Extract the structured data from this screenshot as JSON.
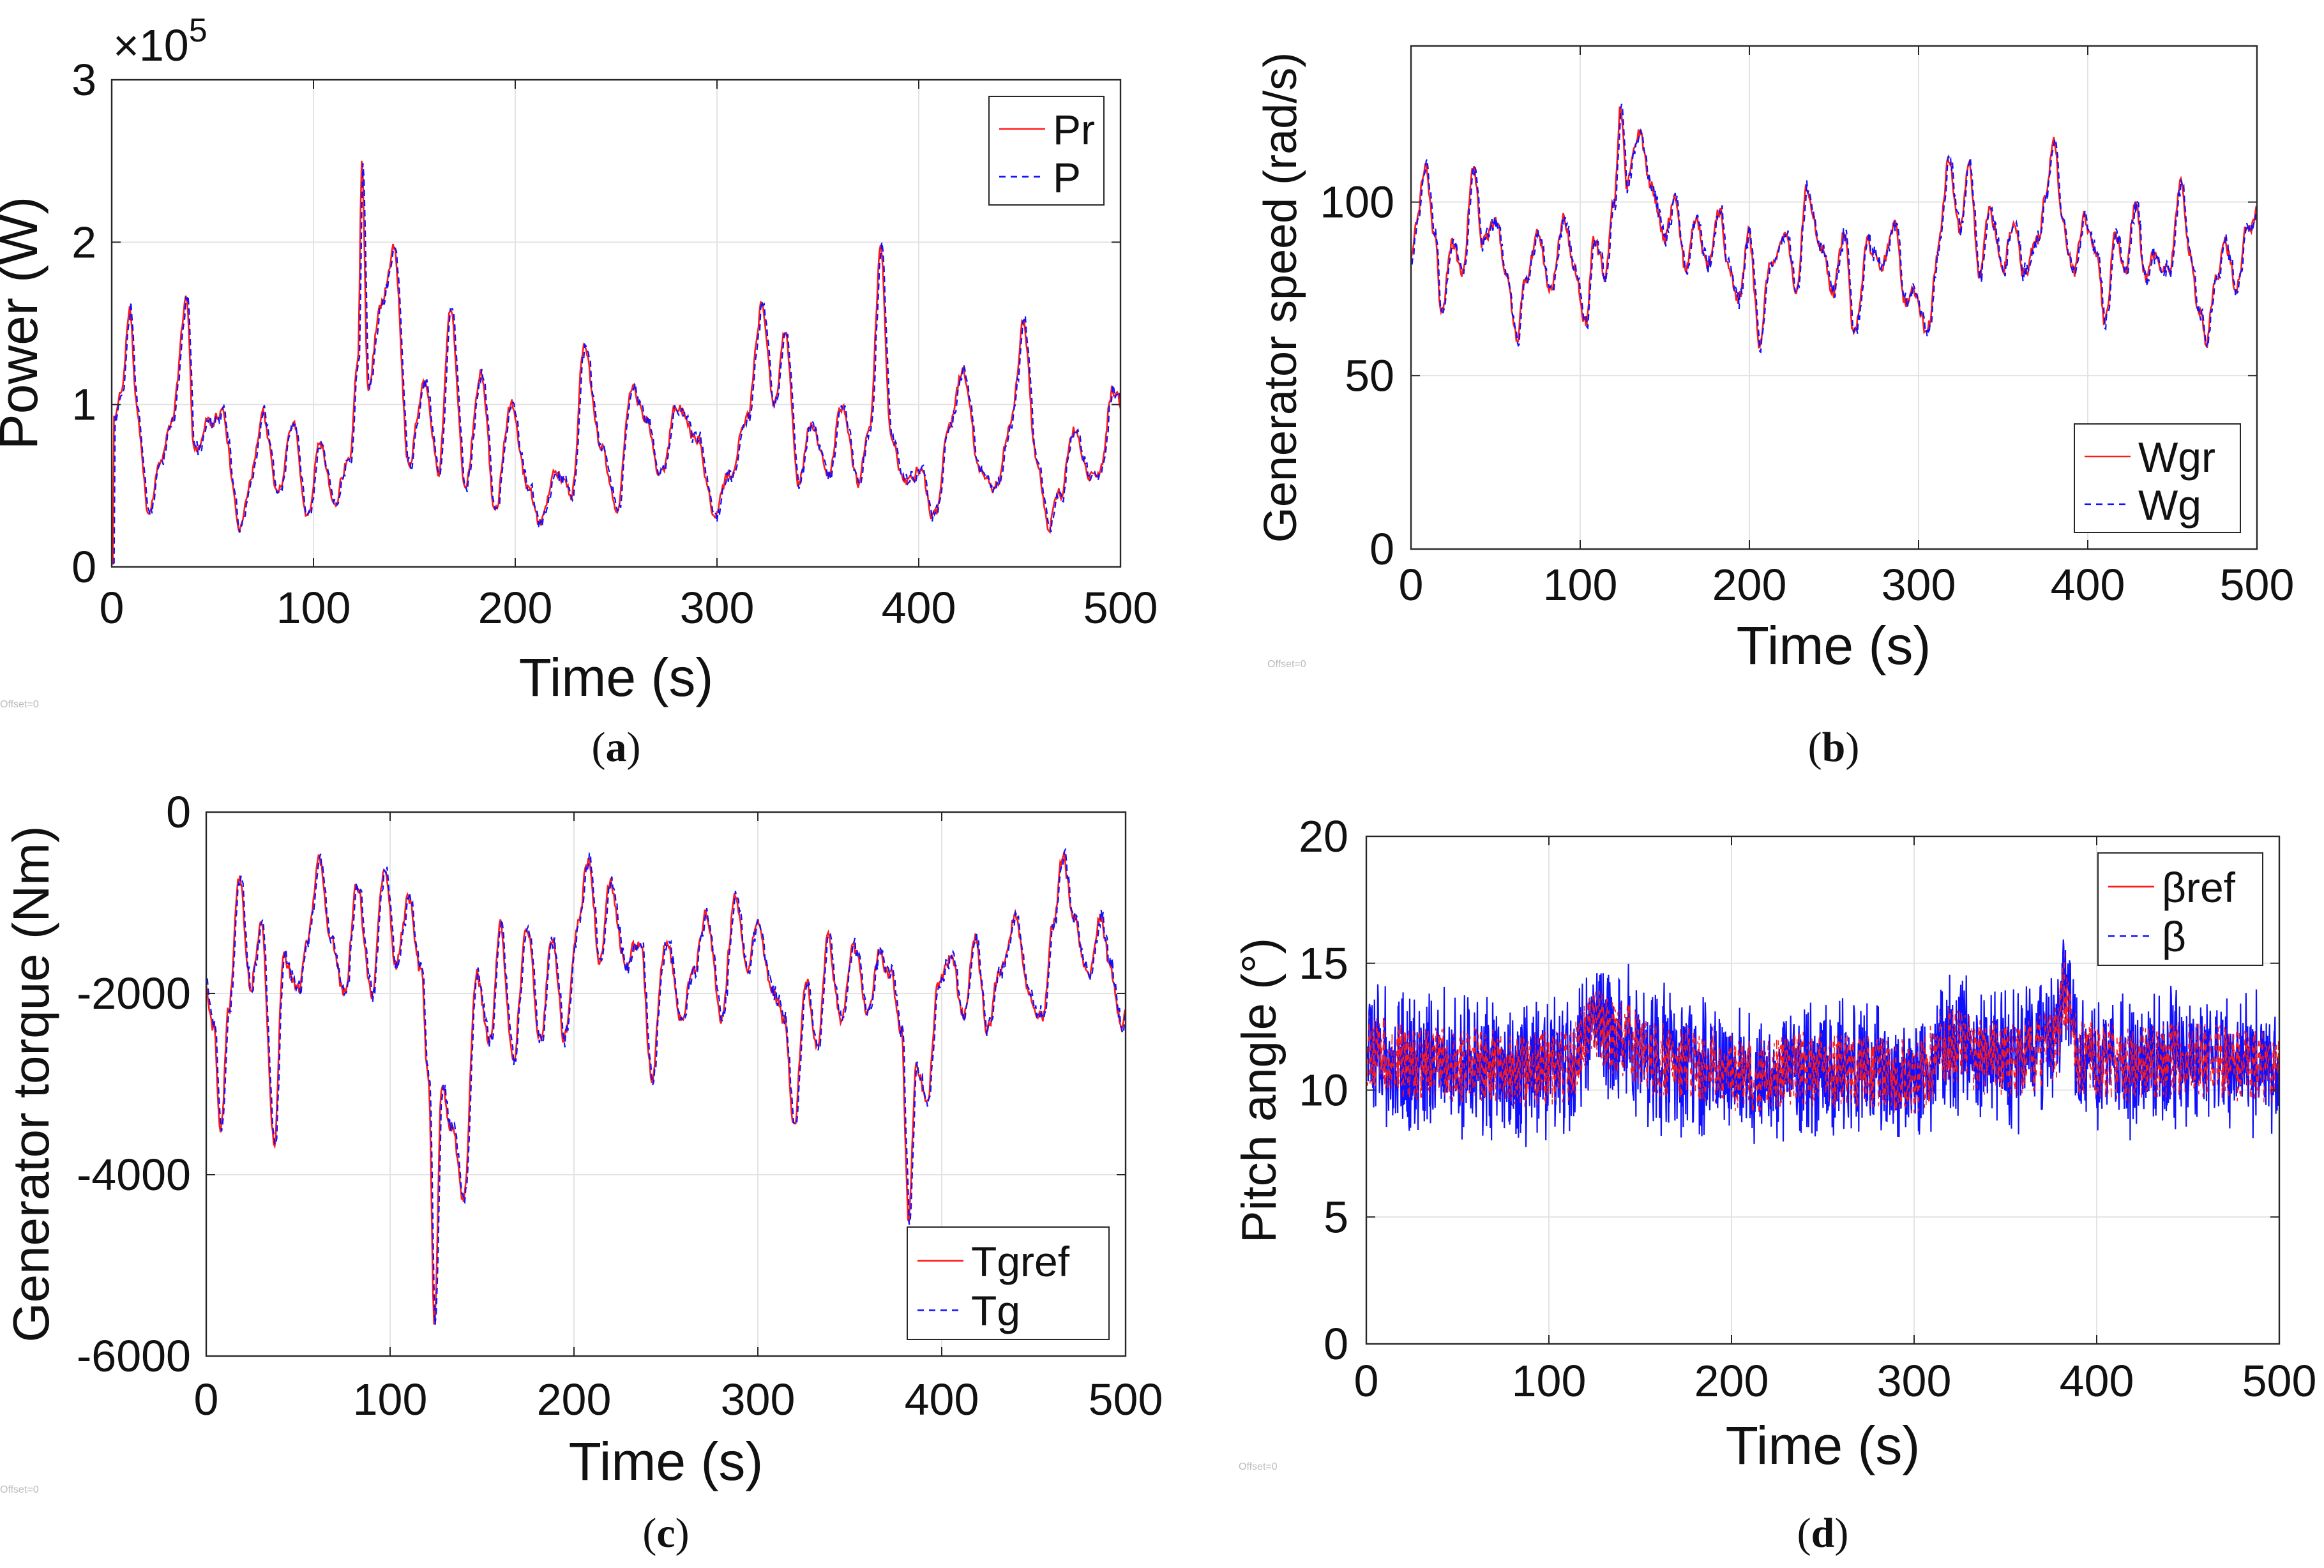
{
  "colors": {
    "ref": "#ff1a1a",
    "actual": "#1010ff",
    "grid": "#e3e3e3"
  },
  "offset_label": "Offset=0",
  "chart_data": [
    {
      "id": "a",
      "caption_letter": "a",
      "type": "line",
      "title": "",
      "xlabel": "Time (s)",
      "ylabel": "Power (W)",
      "xlim": [
        0,
        500
      ],
      "ylim": [
        0,
        3
      ],
      "xticks": [
        "0",
        "100",
        "200",
        "300",
        "400",
        "500"
      ],
      "yticks": [
        "0",
        "1",
        "2",
        "3"
      ],
      "y_multiplier": "×10",
      "y_exponent": "5",
      "grid": true,
      "legend_position": "top-right",
      "series": [
        {
          "name": "Pr",
          "style": "solid"
        },
        {
          "name": "P",
          "style": "dashed"
        }
      ],
      "seed": 11,
      "noise": 0.08,
      "anchors": [
        [
          0,
          0.02
        ],
        [
          1,
          0.9
        ],
        [
          5,
          1.1
        ],
        [
          9,
          1.6
        ],
        [
          12,
          1.0
        ],
        [
          18,
          0.35
        ],
        [
          25,
          0.7
        ],
        [
          30,
          0.9
        ],
        [
          37,
          1.65
        ],
        [
          41,
          0.7
        ],
        [
          48,
          0.9
        ],
        [
          55,
          0.95
        ],
        [
          63,
          0.25
        ],
        [
          68,
          0.5
        ],
        [
          75,
          0.95
        ],
        [
          82,
          0.45
        ],
        [
          90,
          0.9
        ],
        [
          97,
          0.3
        ],
        [
          103,
          0.8
        ],
        [
          110,
          0.4
        ],
        [
          118,
          0.7
        ],
        [
          122,
          1.3
        ],
        [
          124,
          2.55
        ],
        [
          127,
          1.1
        ],
        [
          133,
          1.6
        ],
        [
          140,
          1.95
        ],
        [
          147,
          0.65
        ],
        [
          155,
          1.15
        ],
        [
          162,
          0.6
        ],
        [
          168,
          1.6
        ],
        [
          175,
          0.5
        ],
        [
          183,
          1.2
        ],
        [
          190,
          0.35
        ],
        [
          198,
          1.0
        ],
        [
          206,
          0.5
        ],
        [
          212,
          0.25
        ],
        [
          220,
          0.6
        ],
        [
          228,
          0.45
        ],
        [
          234,
          1.35
        ],
        [
          242,
          0.75
        ],
        [
          250,
          0.35
        ],
        [
          258,
          1.1
        ],
        [
          265,
          0.9
        ],
        [
          272,
          0.55
        ],
        [
          280,
          1.0
        ],
        [
          290,
          0.8
        ],
        [
          298,
          0.35
        ],
        [
          306,
          0.55
        ],
        [
          315,
          0.9
        ],
        [
          322,
          1.6
        ],
        [
          328,
          1.0
        ],
        [
          334,
          1.45
        ],
        [
          340,
          0.5
        ],
        [
          347,
          0.9
        ],
        [
          355,
          0.55
        ],
        [
          362,
          1.0
        ],
        [
          370,
          0.5
        ],
        [
          376,
          0.9
        ],
        [
          381,
          1.95
        ],
        [
          386,
          0.85
        ],
        [
          393,
          0.5
        ],
        [
          400,
          0.6
        ],
        [
          408,
          0.3
        ],
        [
          415,
          0.9
        ],
        [
          422,
          1.2
        ],
        [
          430,
          0.6
        ],
        [
          438,
          0.5
        ],
        [
          446,
          0.9
        ],
        [
          452,
          1.5
        ],
        [
          458,
          0.7
        ],
        [
          464,
          0.25
        ],
        [
          470,
          0.45
        ],
        [
          477,
          0.85
        ],
        [
          484,
          0.55
        ],
        [
          490,
          0.6
        ],
        [
          496,
          1.1
        ],
        [
          500,
          1.0
        ]
      ]
    },
    {
      "id": "b",
      "caption_letter": "b",
      "type": "line",
      "title": "",
      "xlabel": "Time (s)",
      "ylabel": "Generator speed (rad/s)",
      "xlim": [
        0,
        500
      ],
      "ylim": [
        0,
        145
      ],
      "xticks": [
        "0",
        "100",
        "200",
        "300",
        "400",
        "500"
      ],
      "yticks": [
        "0",
        "50",
        "100"
      ],
      "grid": true,
      "legend_position": "bottom-right",
      "series": [
        {
          "name": "Wgr",
          "style": "solid"
        },
        {
          "name": "Wg",
          "style": "dashed"
        }
      ],
      "seed": 23,
      "noise": 4.5,
      "anchors": [
        [
          0,
          85
        ],
        [
          4,
          95
        ],
        [
          8,
          110
        ],
        [
          14,
          90
        ],
        [
          18,
          68
        ],
        [
          24,
          88
        ],
        [
          30,
          80
        ],
        [
          37,
          111
        ],
        [
          42,
          88
        ],
        [
          50,
          95
        ],
        [
          56,
          80
        ],
        [
          62,
          60
        ],
        [
          68,
          78
        ],
        [
          75,
          92
        ],
        [
          82,
          75
        ],
        [
          90,
          95
        ],
        [
          97,
          80
        ],
        [
          103,
          65
        ],
        [
          108,
          88
        ],
        [
          115,
          78
        ],
        [
          120,
          100
        ],
        [
          124,
          128
        ],
        [
          128,
          105
        ],
        [
          135,
          120
        ],
        [
          142,
          105
        ],
        [
          150,
          90
        ],
        [
          156,
          102
        ],
        [
          162,
          80
        ],
        [
          168,
          96
        ],
        [
          175,
          82
        ],
        [
          182,
          98
        ],
        [
          188,
          80
        ],
        [
          194,
          72
        ],
        [
          200,
          90
        ],
        [
          206,
          60
        ],
        [
          212,
          82
        ],
        [
          220,
          90
        ],
        [
          228,
          75
        ],
        [
          234,
          103
        ],
        [
          242,
          88
        ],
        [
          250,
          75
        ],
        [
          256,
          92
        ],
        [
          262,
          62
        ],
        [
          270,
          88
        ],
        [
          278,
          80
        ],
        [
          286,
          93
        ],
        [
          292,
          72
        ],
        [
          298,
          75
        ],
        [
          305,
          62
        ],
        [
          312,
          88
        ],
        [
          318,
          112
        ],
        [
          324,
          92
        ],
        [
          330,
          110
        ],
        [
          336,
          80
        ],
        [
          342,
          98
        ],
        [
          350,
          82
        ],
        [
          356,
          95
        ],
        [
          362,
          80
        ],
        [
          370,
          88
        ],
        [
          376,
          105
        ],
        [
          380,
          120
        ],
        [
          385,
          95
        ],
        [
          392,
          80
        ],
        [
          398,
          95
        ],
        [
          405,
          85
        ],
        [
          410,
          65
        ],
        [
          416,
          90
        ],
        [
          422,
          80
        ],
        [
          428,
          100
        ],
        [
          434,
          78
        ],
        [
          440,
          85
        ],
        [
          448,
          80
        ],
        [
          455,
          108
        ],
        [
          460,
          85
        ],
        [
          466,
          68
        ],
        [
          470,
          60
        ],
        [
          476,
          80
        ],
        [
          482,
          88
        ],
        [
          488,
          75
        ],
        [
          494,
          92
        ],
        [
          500,
          96
        ]
      ]
    },
    {
      "id": "c",
      "caption_letter": "c",
      "type": "line",
      "title": "",
      "xlabel": "Time (s)",
      "ylabel": "Generator torque (Nm)",
      "xlim": [
        0,
        500
      ],
      "ylim": [
        -6000,
        0
      ],
      "xticks": [
        "0",
        "100",
        "200",
        "300",
        "400",
        "500"
      ],
      "yticks": [
        "-6000",
        "-4000",
        "-2000",
        "0"
      ],
      "grid": true,
      "legend_position": "bottom-right",
      "series": [
        {
          "name": "Tgref",
          "style": "solid"
        },
        {
          "name": "Tg",
          "style": "dashed"
        }
      ],
      "seed": 37,
      "noise": 180,
      "anchors": [
        [
          0,
          -1900
        ],
        [
          4,
          -2400
        ],
        [
          8,
          -3500
        ],
        [
          12,
          -2200
        ],
        [
          18,
          -700
        ],
        [
          24,
          -1900
        ],
        [
          30,
          -1200
        ],
        [
          37,
          -3600
        ],
        [
          42,
          -1600
        ],
        [
          50,
          -2000
        ],
        [
          56,
          -1300
        ],
        [
          62,
          -550
        ],
        [
          68,
          -1400
        ],
        [
          75,
          -2000
        ],
        [
          82,
          -800
        ],
        [
          90,
          -2000
        ],
        [
          97,
          -700
        ],
        [
          103,
          -1700
        ],
        [
          110,
          -1000
        ],
        [
          117,
          -1800
        ],
        [
          121,
          -3000
        ],
        [
          124,
          -5700
        ],
        [
          128,
          -3100
        ],
        [
          134,
          -3500
        ],
        [
          140,
          -4300
        ],
        [
          147,
          -1800
        ],
        [
          154,
          -2500
        ],
        [
          160,
          -1300
        ],
        [
          167,
          -2800
        ],
        [
          174,
          -1200
        ],
        [
          182,
          -2500
        ],
        [
          188,
          -1400
        ],
        [
          195,
          -2500
        ],
        [
          202,
          -1200
        ],
        [
          208,
          -500
        ],
        [
          214,
          -1600
        ],
        [
          220,
          -800
        ],
        [
          228,
          -1700
        ],
        [
          236,
          -1400
        ],
        [
          242,
          -2900
        ],
        [
          250,
          -1400
        ],
        [
          258,
          -2200
        ],
        [
          265,
          -1800
        ],
        [
          272,
          -1100
        ],
        [
          280,
          -2300
        ],
        [
          288,
          -900
        ],
        [
          294,
          -1800
        ],
        [
          300,
          -1200
        ],
        [
          308,
          -2000
        ],
        [
          314,
          -2300
        ],
        [
          320,
          -3500
        ],
        [
          326,
          -1800
        ],
        [
          332,
          -2600
        ],
        [
          338,
          -1400
        ],
        [
          345,
          -2300
        ],
        [
          352,
          -1500
        ],
        [
          360,
          -2200
        ],
        [
          366,
          -1500
        ],
        [
          372,
          -1800
        ],
        [
          378,
          -2400
        ],
        [
          382,
          -4500
        ],
        [
          386,
          -2800
        ],
        [
          392,
          -3200
        ],
        [
          398,
          -1900
        ],
        [
          405,
          -1600
        ],
        [
          412,
          -2300
        ],
        [
          418,
          -1400
        ],
        [
          425,
          -2400
        ],
        [
          432,
          -1700
        ],
        [
          440,
          -1100
        ],
        [
          448,
          -2000
        ],
        [
          455,
          -2300
        ],
        [
          460,
          -1300
        ],
        [
          466,
          -500
        ],
        [
          472,
          -1200
        ],
        [
          480,
          -1800
        ],
        [
          486,
          -1100
        ],
        [
          492,
          -1800
        ],
        [
          498,
          -2300
        ],
        [
          500,
          -2100
        ]
      ]
    },
    {
      "id": "d",
      "caption_letter": "d",
      "type": "line",
      "title": "",
      "xlabel": "Time (s)",
      "ylabel": "Pitch angle (°)",
      "xlim": [
        0,
        500
      ],
      "ylim": [
        0,
        20
      ],
      "xticks": [
        "0",
        "100",
        "200",
        "300",
        "400",
        "500"
      ],
      "yticks": [
        "0",
        "5",
        "10",
        "15",
        "20"
      ],
      "grid": true,
      "legend_position": "top-right",
      "series": [
        {
          "name": "βref",
          "style": "solid"
        },
        {
          "name": "β",
          "style": "dashed"
        }
      ],
      "seed": 53,
      "noise": 1.5,
      "anchors": [
        [
          0,
          11.5
        ],
        [
          30,
          11
        ],
        [
          60,
          11
        ],
        [
          90,
          10.8
        ],
        [
          110,
          11
        ],
        [
          125,
          12.5
        ],
        [
          140,
          12
        ],
        [
          160,
          11.2
        ],
        [
          190,
          11
        ],
        [
          210,
          10.5
        ],
        [
          240,
          10.8
        ],
        [
          270,
          10.8
        ],
        [
          300,
          10.5
        ],
        [
          320,
          11.8
        ],
        [
          340,
          11.3
        ],
        [
          360,
          11.2
        ],
        [
          378,
          11.8
        ],
        [
          382,
          14
        ],
        [
          390,
          11.3
        ],
        [
          420,
          11
        ],
        [
          450,
          11.2
        ],
        [
          480,
          11
        ],
        [
          500,
          11
        ]
      ]
    }
  ]
}
